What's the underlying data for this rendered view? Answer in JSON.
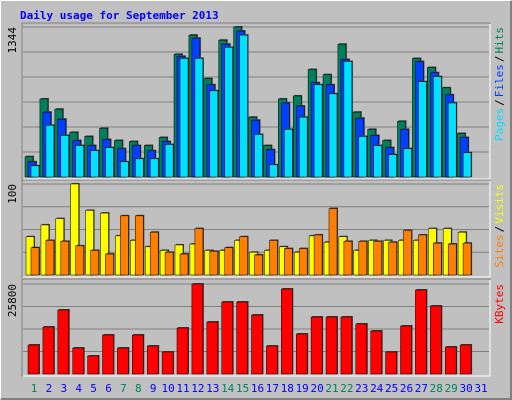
{
  "chart_data": [
    {
      "type": "bar",
      "title": "Daily usage for September 2013",
      "separator": "/",
      "ylim": [
        0,
        1344
      ],
      "yticks": [
        1344
      ],
      "series": [
        {
          "name": "Hits",
          "color": "#00805c",
          "values": [
            182,
            699,
            608,
            400,
            363,
            436,
            327,
            318,
            282,
            354,
            1099,
            1271,
            881,
            1226,
            1344,
            536,
            282,
            699,
            726,
            963,
            917,
            1190,
            581,
            427,
            327,
            499,
            1062,
            981,
            799,
            390,
            null
          ]
        },
        {
          "name": "Files",
          "color": "#0040ff",
          "values": [
            136,
            581,
            518,
            327,
            282,
            336,
            254,
            282,
            236,
            318,
            1081,
            1244,
            826,
            1190,
            1308,
            509,
            245,
            663,
            636,
            845,
            826,
            1053,
            527,
            372,
            263,
            427,
            1035,
            935,
            736,
            354,
            null
          ]
        },
        {
          "name": "Pages",
          "color": "#00e0ff",
          "values": [
            100,
            463,
            372,
            282,
            236,
            263,
            136,
            163,
            163,
            291,
            1062,
            1062,
            772,
            1162,
            1271,
            381,
            109,
            427,
            536,
            826,
            745,
            1035,
            363,
            282,
            200,
            254,
            854,
            899,
            663,
            218,
            null
          ]
        }
      ]
    },
    {
      "type": "bar",
      "separator": "/",
      "ylim": [
        0,
        100
      ],
      "yticks": [
        100
      ],
      "series": [
        {
          "name": "Visits",
          "color": "#ffff00",
          "values": [
            42,
            55,
            62,
            100,
            71,
            68,
            43,
            38,
            31,
            27,
            33,
            34,
            27,
            27,
            38,
            25,
            27,
            31,
            25,
            43,
            36,
            42,
            27,
            38,
            38,
            38,
            38,
            51,
            51,
            47,
            null
          ]
        },
        {
          "name": "Sites",
          "color": "#ff8000",
          "values": [
            30,
            38,
            37,
            32,
            27,
            23,
            65,
            65,
            47,
            25,
            23,
            51,
            26,
            30,
            42,
            22,
            38,
            29,
            29,
            44,
            73,
            37,
            37,
            37,
            36,
            49,
            44,
            35,
            34,
            35,
            null
          ]
        }
      ]
    },
    {
      "type": "bar",
      "ylim": [
        0,
        25800
      ],
      "yticks": [
        25800
      ],
      "categories": [
        "1",
        "2",
        "3",
        "4",
        "5",
        "6",
        "7",
        "8",
        "9",
        "10",
        "11",
        "12",
        "13",
        "14",
        "15",
        "16",
        "17",
        "18",
        "19",
        "20",
        "21",
        "22",
        "23",
        "24",
        "25",
        "26",
        "27",
        "28",
        "29",
        "30",
        "31"
      ],
      "category_colors": [
        "#00805c",
        "#0000ff",
        "#0000ff",
        "#0000ff",
        "#0000ff",
        "#0000ff",
        "#00805c",
        "#00805c",
        "#0000ff",
        "#0000ff",
        "#0000ff",
        "#0000ff",
        "#0000ff",
        "#00805c",
        "#00805c",
        "#0000ff",
        "#0000ff",
        "#0000ff",
        "#0000ff",
        "#0000ff",
        "#00805c",
        "#00805c",
        "#0000ff",
        "#0000ff",
        "#0000ff",
        "#0000ff",
        "#0000ff",
        "#00805c",
        "#00805c",
        "#0000ff",
        "#0000ff"
      ],
      "series": [
        {
          "name": "KBytes",
          "color": "#ff0000",
          "values": [
            8313,
            13473,
            18346,
            7453,
            5160,
            11180,
            7453,
            11180,
            8027,
            6307,
            13187,
            25800,
            14907,
            20640,
            20640,
            16913,
            8027,
            24367,
            11467,
            16340,
            16340,
            16340,
            14333,
            12327,
            6307,
            13760,
            24080,
            19493,
            7740,
            8313,
            null
          ]
        }
      ]
    }
  ]
}
